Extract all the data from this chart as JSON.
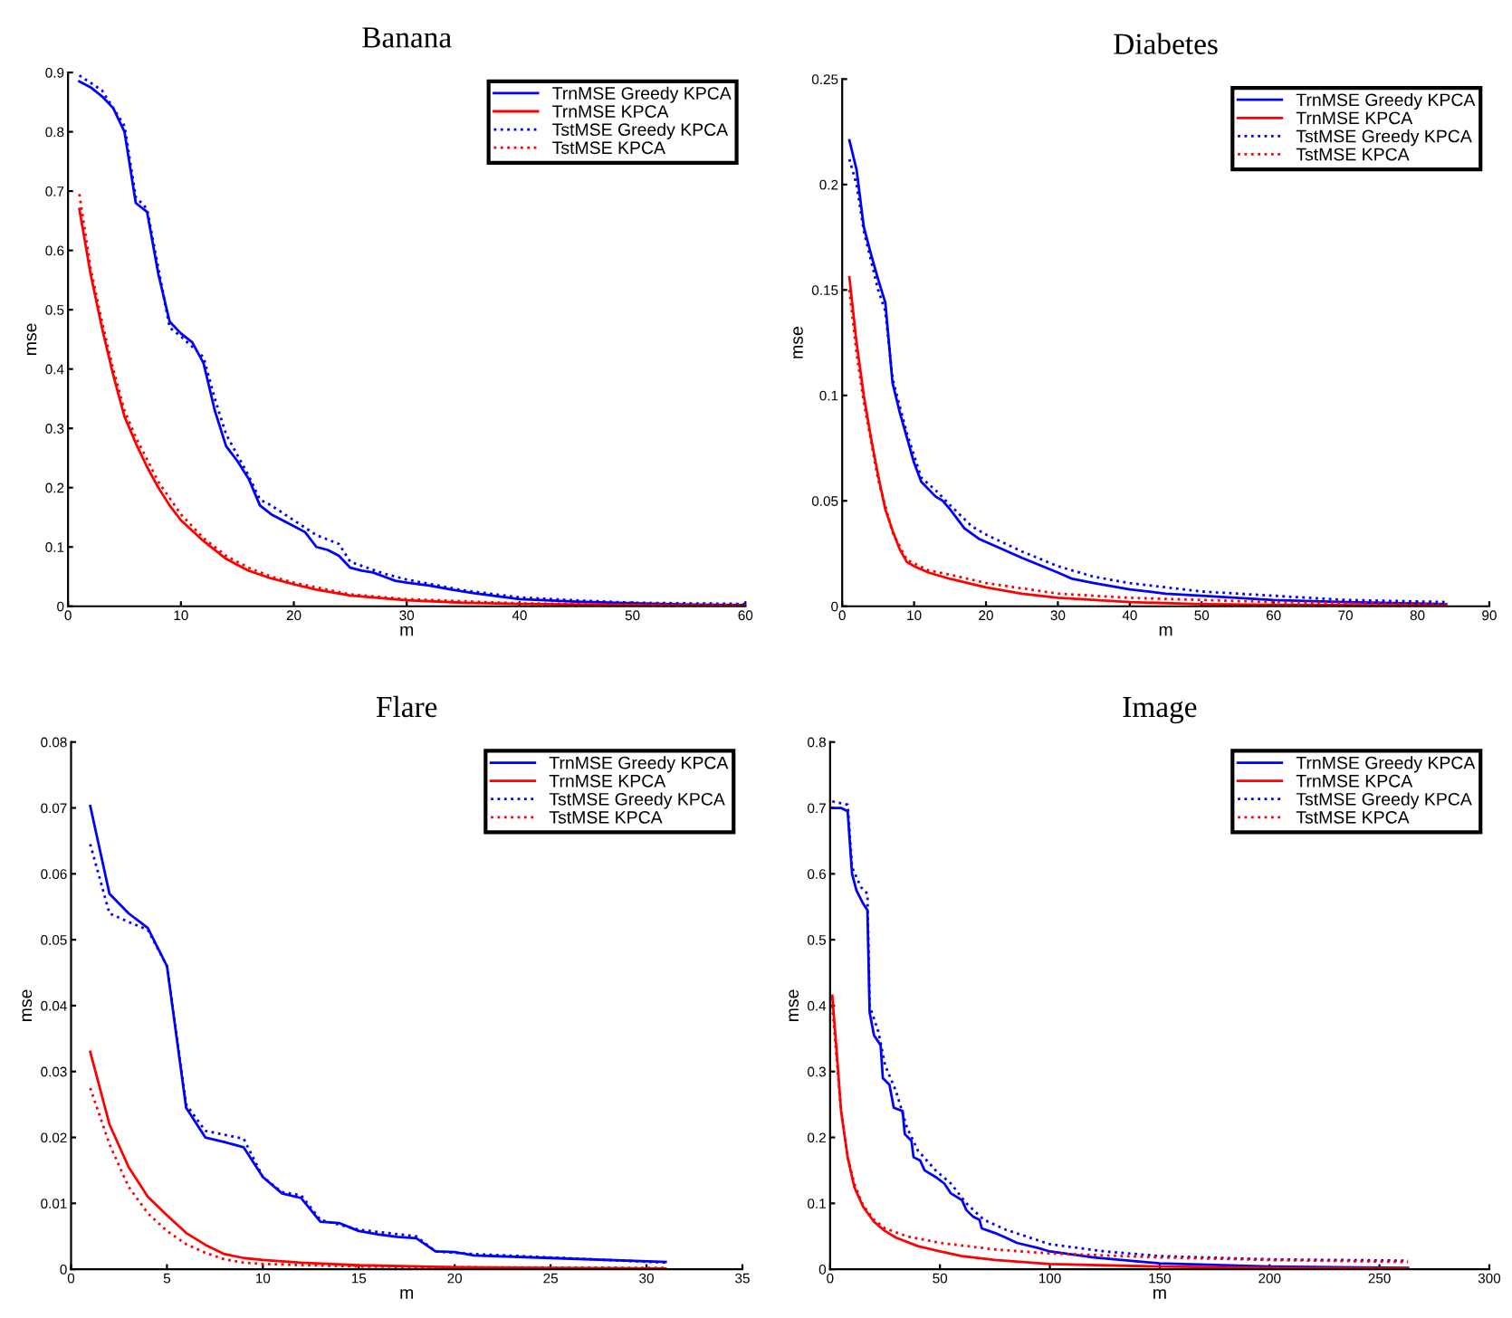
{
  "chart_data": [
    {
      "type": "line",
      "title": "Banana",
      "xlabel": "m",
      "ylabel": "mse",
      "xlim": [
        0,
        60
      ],
      "xticks": [
        0,
        10,
        20,
        30,
        40,
        50,
        60
      ],
      "ylim": [
        0,
        0.9
      ],
      "yticks": [
        0,
        0.1,
        0.2,
        0.3,
        0.4,
        0.5,
        0.6,
        0.7,
        0.8,
        0.9
      ],
      "grid": false,
      "legend": "top right",
      "series": [
        {
          "name": "TrnMSE Greedy KPCA",
          "color": "#0000ff",
          "line_style": "solid",
          "x": [
            1,
            2,
            3,
            4,
            5,
            6,
            7,
            8,
            9,
            10,
            11,
            12,
            13,
            14,
            15,
            16,
            17,
            18,
            19,
            20,
            21,
            22,
            23,
            24,
            25,
            26,
            27,
            28,
            29,
            30,
            32,
            34,
            36,
            38,
            40,
            45,
            50,
            55,
            60
          ],
          "values": [
            0.885,
            0.875,
            0.86,
            0.84,
            0.8,
            0.68,
            0.665,
            0.56,
            0.48,
            0.46,
            0.445,
            0.41,
            0.33,
            0.27,
            0.245,
            0.215,
            0.17,
            0.155,
            0.145,
            0.135,
            0.125,
            0.1,
            0.095,
            0.085,
            0.065,
            0.06,
            0.057,
            0.05,
            0.043,
            0.04,
            0.035,
            0.028,
            0.022,
            0.017,
            0.012,
            0.008,
            0.005,
            0.003,
            0.002
          ]
        },
        {
          "name": "TrnMSE KPCA",
          "color": "#ff0000",
          "line_style": "solid",
          "x": [
            1,
            2,
            3,
            4,
            5,
            6,
            7,
            8,
            9,
            10,
            12,
            14,
            16,
            18,
            20,
            22,
            25,
            30,
            35,
            40,
            50,
            60
          ],
          "values": [
            0.67,
            0.56,
            0.47,
            0.39,
            0.32,
            0.275,
            0.235,
            0.2,
            0.17,
            0.145,
            0.11,
            0.08,
            0.06,
            0.047,
            0.037,
            0.028,
            0.018,
            0.01,
            0.006,
            0.004,
            0.002,
            0.001
          ]
        },
        {
          "name": "TstMSE Greedy KPCA",
          "color": "#0000ff",
          "line_style": "dotted",
          "x": [
            1,
            3,
            5,
            6,
            7,
            8,
            9,
            10,
            12,
            13,
            14,
            16,
            17,
            18,
            20,
            22,
            24,
            25,
            28,
            30,
            35,
            40,
            45,
            50,
            60
          ],
          "values": [
            0.895,
            0.87,
            0.81,
            0.69,
            0.67,
            0.57,
            0.47,
            0.455,
            0.42,
            0.35,
            0.29,
            0.22,
            0.18,
            0.17,
            0.145,
            0.12,
            0.105,
            0.075,
            0.055,
            0.045,
            0.027,
            0.015,
            0.01,
            0.006,
            0.004
          ]
        },
        {
          "name": "TstMSE KPCA",
          "color": "#ff0000",
          "line_style": "dotted",
          "x": [
            1,
            2,
            3,
            4,
            5,
            6,
            8,
            10,
            12,
            14,
            16,
            18,
            20,
            25,
            30,
            40,
            50,
            60
          ],
          "values": [
            0.695,
            0.57,
            0.48,
            0.4,
            0.33,
            0.285,
            0.21,
            0.155,
            0.115,
            0.085,
            0.065,
            0.05,
            0.04,
            0.02,
            0.012,
            0.005,
            0.003,
            0.002
          ]
        }
      ]
    },
    {
      "type": "line",
      "title": "Diabetes",
      "xlabel": "m",
      "ylabel": "mse",
      "xlim": [
        0,
        90
      ],
      "xticks": [
        0,
        10,
        20,
        30,
        40,
        50,
        60,
        70,
        80,
        90
      ],
      "ylim": [
        0,
        0.25
      ],
      "yticks": [
        0,
        0.05,
        0.1,
        0.15,
        0.2,
        0.25
      ],
      "grid": false,
      "legend": "top right",
      "series": [
        {
          "name": "TrnMSE Greedy KPCA",
          "color": "#0000ff",
          "line_style": "solid",
          "x": [
            1,
            2,
            3,
            4,
            5,
            6,
            7,
            8,
            9,
            10,
            11,
            13,
            14,
            15,
            17,
            19,
            21,
            25,
            30,
            32,
            35,
            40,
            45,
            50,
            60,
            70,
            84
          ],
          "values": [
            0.221,
            0.207,
            0.18,
            0.167,
            0.155,
            0.144,
            0.106,
            0.092,
            0.08,
            0.068,
            0.059,
            0.052,
            0.05,
            0.046,
            0.037,
            0.032,
            0.029,
            0.023,
            0.016,
            0.013,
            0.011,
            0.008,
            0.006,
            0.005,
            0.003,
            0.002,
            0.001
          ]
        },
        {
          "name": "TrnMSE KPCA",
          "color": "#ff0000",
          "line_style": "solid",
          "x": [
            1,
            2,
            3,
            4,
            5,
            6,
            7,
            8,
            9,
            10,
            12,
            15,
            20,
            25,
            30,
            40,
            50,
            60,
            84
          ],
          "values": [
            0.156,
            0.125,
            0.1,
            0.08,
            0.062,
            0.046,
            0.036,
            0.027,
            0.021,
            0.019,
            0.016,
            0.013,
            0.009,
            0.006,
            0.004,
            0.002,
            0.001,
            0.0007,
            0.0003
          ]
        },
        {
          "name": "TstMSE Greedy KPCA",
          "color": "#0000ff",
          "line_style": "dotted",
          "x": [
            1,
            2,
            3,
            5,
            6,
            7,
            9,
            11,
            13,
            15,
            18,
            20,
            25,
            30,
            35,
            40,
            50,
            60,
            70,
            84
          ],
          "values": [
            0.212,
            0.2,
            0.178,
            0.15,
            0.14,
            0.108,
            0.082,
            0.061,
            0.055,
            0.048,
            0.038,
            0.034,
            0.026,
            0.019,
            0.014,
            0.011,
            0.007,
            0.005,
            0.003,
            0.002
          ]
        },
        {
          "name": "TstMSE KPCA",
          "color": "#ff0000",
          "line_style": "dotted",
          "x": [
            1,
            2,
            3,
            5,
            7,
            9,
            12,
            15,
            20,
            30,
            40,
            50,
            60,
            84
          ],
          "values": [
            0.15,
            0.12,
            0.097,
            0.06,
            0.035,
            0.022,
            0.017,
            0.015,
            0.011,
            0.006,
            0.004,
            0.003,
            0.002,
            0.001
          ]
        }
      ]
    },
    {
      "type": "line",
      "title": "Flare",
      "xlabel": "m",
      "ylabel": "mse",
      "xlim": [
        0,
        35
      ],
      "xticks": [
        0,
        5,
        10,
        15,
        20,
        25,
        30,
        35
      ],
      "ylim": [
        0,
        0.08
      ],
      "yticks": [
        0,
        0.01,
        0.02,
        0.03,
        0.04,
        0.05,
        0.06,
        0.07,
        0.08
      ],
      "grid": false,
      "legend": "top right",
      "series": [
        {
          "name": "TrnMSE Greedy KPCA",
          "color": "#0000ff",
          "line_style": "solid",
          "x": [
            1,
            2,
            3,
            4,
            5,
            6,
            7,
            8,
            9,
            10,
            11,
            12,
            13,
            14,
            15,
            16,
            17,
            18,
            19,
            20,
            21,
            25,
            31
          ],
          "values": [
            0.0703,
            0.057,
            0.054,
            0.0518,
            0.046,
            0.0245,
            0.02,
            0.0193,
            0.0185,
            0.014,
            0.0115,
            0.0108,
            0.0072,
            0.007,
            0.0058,
            0.0053,
            0.0049,
            0.0047,
            0.0027,
            0.0026,
            0.0021,
            0.0017,
            0.0011
          ]
        },
        {
          "name": "TrnMSE KPCA",
          "color": "#ff0000",
          "line_style": "solid",
          "x": [
            1,
            2,
            3,
            4,
            5,
            6,
            7,
            8,
            9,
            10,
            12,
            15,
            20,
            25,
            31
          ],
          "values": [
            0.033,
            0.022,
            0.0155,
            0.011,
            0.0082,
            0.0055,
            0.0037,
            0.0023,
            0.0017,
            0.0014,
            0.001,
            0.0006,
            0.0003,
            0.0002,
            0.0001
          ]
        },
        {
          "name": "TstMSE Greedy KPCA",
          "color": "#0000ff",
          "line_style": "dotted",
          "x": [
            1,
            2,
            3,
            4,
            5,
            6,
            7,
            9,
            10,
            11,
            12,
            13,
            15,
            18,
            19,
            21,
            25,
            31
          ],
          "values": [
            0.0645,
            0.054,
            0.0527,
            0.0515,
            0.046,
            0.025,
            0.021,
            0.0198,
            0.014,
            0.0117,
            0.0112,
            0.0075,
            0.006,
            0.005,
            0.0027,
            0.0023,
            0.0018,
            0.001
          ]
        },
        {
          "name": "TstMSE KPCA",
          "color": "#ff0000",
          "line_style": "dotted",
          "x": [
            1,
            2,
            3,
            4,
            5,
            6,
            7,
            8,
            9,
            10,
            15,
            20,
            31
          ],
          "values": [
            0.0275,
            0.019,
            0.0125,
            0.0085,
            0.0058,
            0.0038,
            0.0025,
            0.0015,
            0.001,
            0.0008,
            0.0004,
            0.0003,
            0.0002
          ]
        }
      ]
    },
    {
      "type": "line",
      "title": "Image",
      "xlabel": "m",
      "ylabel": "mse",
      "xlim": [
        0,
        300
      ],
      "xticks": [
        0,
        50,
        100,
        150,
        200,
        250,
        300
      ],
      "ylim": [
        0,
        0.8
      ],
      "yticks": [
        0,
        0.1,
        0.2,
        0.3,
        0.4,
        0.5,
        0.6,
        0.7,
        0.8
      ],
      "grid": false,
      "legend": "top right",
      "series": [
        {
          "name": "TrnMSE Greedy KPCA",
          "color": "#0000ff",
          "line_style": "solid",
          "x": [
            1,
            5,
            8,
            10,
            12,
            15,
            17,
            18,
            20,
            23,
            24,
            27,
            29,
            33,
            34,
            37,
            38,
            41,
            43,
            48,
            52,
            55,
            60,
            62,
            65,
            68,
            69,
            75,
            80,
            85,
            95,
            100,
            120,
            150,
            200,
            263
          ],
          "values": [
            0.7,
            0.7,
            0.695,
            0.6,
            0.575,
            0.555,
            0.545,
            0.39,
            0.355,
            0.34,
            0.29,
            0.28,
            0.245,
            0.24,
            0.205,
            0.195,
            0.17,
            0.165,
            0.15,
            0.14,
            0.13,
            0.115,
            0.105,
            0.09,
            0.08,
            0.075,
            0.062,
            0.055,
            0.048,
            0.04,
            0.032,
            0.027,
            0.018,
            0.009,
            0.004,
            0.002
          ]
        },
        {
          "name": "TrnMSE KPCA",
          "color": "#ff0000",
          "line_style": "solid",
          "x": [
            1,
            3,
            5,
            8,
            11,
            15,
            20,
            25,
            30,
            40,
            50,
            60,
            75,
            100,
            150,
            200,
            263
          ],
          "values": [
            0.415,
            0.33,
            0.24,
            0.17,
            0.125,
            0.095,
            0.072,
            0.058,
            0.048,
            0.035,
            0.027,
            0.02,
            0.014,
            0.008,
            0.004,
            0.002,
            0.001
          ]
        },
        {
          "name": "TstMSE Greedy KPCA",
          "color": "#0000ff",
          "line_style": "dotted",
          "x": [
            1,
            8,
            10,
            14,
            17,
            18,
            22,
            25,
            30,
            35,
            40,
            48,
            55,
            62,
            70,
            80,
            100,
            125,
            150,
            200,
            263
          ],
          "values": [
            0.71,
            0.705,
            0.61,
            0.58,
            0.57,
            0.4,
            0.36,
            0.31,
            0.27,
            0.215,
            0.18,
            0.15,
            0.13,
            0.1,
            0.075,
            0.06,
            0.038,
            0.027,
            0.02,
            0.015,
            0.013
          ]
        },
        {
          "name": "TstMSE KPCA",
          "color": "#ff0000",
          "line_style": "dotted",
          "x": [
            1,
            3,
            5,
            8,
            11,
            15,
            20,
            25,
            35,
            50,
            75,
            100,
            150,
            200,
            263
          ],
          "values": [
            0.4,
            0.32,
            0.24,
            0.17,
            0.13,
            0.097,
            0.075,
            0.062,
            0.05,
            0.04,
            0.03,
            0.024,
            0.018,
            0.014,
            0.011
          ]
        }
      ]
    }
  ]
}
